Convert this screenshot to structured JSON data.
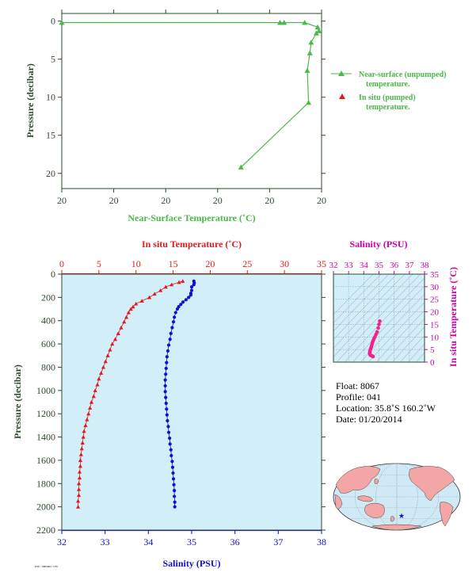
{
  "colors": {
    "green": "#4db848",
    "axis_green": "#2e4a2e",
    "red": "#e31a1c",
    "blue": "#1010d0",
    "magenta": "#cc00aa",
    "pink": "#f0228c",
    "panel_bg": "#d2eef8",
    "ocean": "#cfe9f5",
    "land": "#f4a6a6"
  },
  "chart_data": [
    {
      "id": "near_surface",
      "type": "line",
      "xlabel": "Near-Surface Temperature (˚C)",
      "ylabel": "Pressure (decibar)",
      "xtick_labels": [
        "20",
        "20",
        "20",
        "20",
        "20",
        "20"
      ],
      "ylim": [
        22,
        -1
      ],
      "yticks": [
        0,
        5,
        10,
        15,
        20
      ],
      "series": [
        {
          "name": "Near-surface (unpumped) temperature.",
          "marker": "triangle",
          "points": [
            [
              0.0,
              0.2
            ],
            [
              0.84,
              0.2
            ],
            [
              0.856,
              0.2
            ],
            [
              0.935,
              0.2
            ],
            [
              0.985,
              0.8
            ],
            [
              0.99,
              1.3
            ],
            [
              0.98,
              1.6
            ],
            [
              0.96,
              2.8
            ],
            [
              0.955,
              4.2
            ],
            [
              0.945,
              6.5
            ],
            [
              0.95,
              10.7
            ],
            [
              0.69,
              19.2
            ]
          ]
        },
        {
          "name": "In situ (pumped) temperature.",
          "marker": "triangle",
          "points": []
        }
      ]
    },
    {
      "id": "profile",
      "type": "scatter",
      "top_axis_label": "In situ Temperature (˚C)",
      "bottom_axis_label": "Salinity (PSU)",
      "ylabel": "Pressure (decibar)",
      "temperature_range": [
        0,
        35
      ],
      "salinity_range": [
        32,
        38
      ],
      "ylim": [
        2200,
        0
      ],
      "temperature_ticks": [
        0,
        5,
        10,
        15,
        20,
        25,
        30,
        35
      ],
      "salinity_ticks": [
        32,
        33,
        34,
        35,
        36,
        37,
        38
      ],
      "pressure_ticks": [
        0,
        200,
        400,
        600,
        800,
        1000,
        1200,
        1400,
        1600,
        1800,
        2000,
        2200
      ],
      "series": [
        {
          "name": "temperature",
          "points": [
            [
              16.3,
              60
            ],
            [
              15.8,
              70
            ],
            [
              14.8,
              90
            ],
            [
              14.0,
              110
            ],
            [
              13.3,
              140
            ],
            [
              12.5,
              170
            ],
            [
              11.8,
              200
            ],
            [
              10.8,
              230
            ],
            [
              10.0,
              255
            ],
            [
              9.6,
              280
            ],
            [
              9.3,
              300
            ],
            [
              9.0,
              330
            ],
            [
              8.7,
              370
            ],
            [
              8.4,
              410
            ],
            [
              8.0,
              460
            ],
            [
              7.6,
              510
            ],
            [
              7.2,
              560
            ],
            [
              6.8,
              600
            ],
            [
              6.5,
              650
            ],
            [
              6.2,
              700
            ],
            [
              5.9,
              750
            ],
            [
              5.6,
              800
            ],
            [
              5.3,
              850
            ],
            [
              5.0,
              900
            ],
            [
              4.8,
              950
            ],
            [
              4.5,
              1000
            ],
            [
              4.3,
              1050
            ],
            [
              4.0,
              1100
            ],
            [
              3.8,
              1150
            ],
            [
              3.6,
              1200
            ],
            [
              3.4,
              1250
            ],
            [
              3.2,
              1300
            ],
            [
              3.0,
              1350
            ],
            [
              2.9,
              1400
            ],
            [
              2.8,
              1450
            ],
            [
              2.7,
              1500
            ],
            [
              2.6,
              1550
            ],
            [
              2.5,
              1600
            ],
            [
              2.5,
              1650
            ],
            [
              2.4,
              1700
            ],
            [
              2.4,
              1750
            ],
            [
              2.3,
              1800
            ],
            [
              2.3,
              1850
            ],
            [
              2.3,
              1900
            ],
            [
              2.2,
              1950
            ],
            [
              2.2,
              2000
            ]
          ]
        },
        {
          "name": "salinity",
          "points": [
            [
              35.05,
              60
            ],
            [
              35.06,
              75
            ],
            [
              35.05,
              90
            ],
            [
              35.0,
              110
            ],
            [
              35.0,
              140
            ],
            [
              34.98,
              165
            ],
            [
              34.98,
              180
            ],
            [
              34.93,
              200
            ],
            [
              34.87,
              220
            ],
            [
              34.8,
              240
            ],
            [
              34.75,
              260
            ],
            [
              34.7,
              280
            ],
            [
              34.67,
              300
            ],
            [
              34.63,
              330
            ],
            [
              34.6,
              370
            ],
            [
              34.58,
              410
            ],
            [
              34.55,
              460
            ],
            [
              34.52,
              510
            ],
            [
              34.5,
              560
            ],
            [
              34.47,
              610
            ],
            [
              34.45,
              660
            ],
            [
              34.43,
              710
            ],
            [
              34.42,
              760
            ],
            [
              34.41,
              810
            ],
            [
              34.4,
              860
            ],
            [
              34.39,
              910
            ],
            [
              34.39,
              960
            ],
            [
              34.39,
              1010
            ],
            [
              34.4,
              1060
            ],
            [
              34.41,
              1110
            ],
            [
              34.42,
              1160
            ],
            [
              34.43,
              1210
            ],
            [
              34.44,
              1260
            ],
            [
              34.46,
              1310
            ],
            [
              34.47,
              1360
            ],
            [
              34.49,
              1410
            ],
            [
              34.5,
              1460
            ],
            [
              34.52,
              1510
            ],
            [
              34.53,
              1560
            ],
            [
              34.55,
              1610
            ],
            [
              34.56,
              1660
            ],
            [
              34.57,
              1710
            ],
            [
              34.58,
              1760
            ],
            [
              34.59,
              1810
            ],
            [
              34.6,
              1860
            ],
            [
              34.6,
              1910
            ],
            [
              34.61,
              1960
            ],
            [
              34.61,
              2000
            ]
          ]
        }
      ]
    },
    {
      "id": "ts_inset",
      "type": "scatter",
      "top_axis_label": "Salinity (PSU)",
      "right_axis_label": "In situ Temperature (˚C)",
      "salinity_range": [
        32,
        38
      ],
      "temperature_range": [
        0,
        35
      ],
      "salinity_ticks": [
        32,
        33,
        34,
        35,
        36,
        37,
        38
      ],
      "temperature_ticks": [
        0,
        5,
        10,
        15,
        20,
        25,
        30,
        35
      ],
      "points": [
        [
          35.05,
          16.3
        ],
        [
          35.0,
          15.0
        ],
        [
          34.95,
          13.6
        ],
        [
          34.87,
          12.0
        ],
        [
          34.8,
          11.0
        ],
        [
          34.73,
          10.0
        ],
        [
          34.67,
          9.3
        ],
        [
          34.62,
          8.6
        ],
        [
          34.58,
          8.0
        ],
        [
          34.55,
          7.3
        ],
        [
          34.52,
          6.6
        ],
        [
          34.49,
          6.0
        ],
        [
          34.46,
          5.5
        ],
        [
          34.43,
          5.0
        ],
        [
          34.41,
          4.5
        ],
        [
          34.4,
          4.1
        ],
        [
          34.39,
          3.7
        ],
        [
          34.39,
          3.3
        ],
        [
          34.41,
          3.0
        ],
        [
          34.44,
          2.8
        ],
        [
          34.48,
          2.6
        ],
        [
          34.52,
          2.5
        ],
        [
          34.56,
          2.4
        ],
        [
          34.6,
          2.3
        ],
        [
          34.61,
          2.2
        ]
      ]
    }
  ],
  "float_info": {
    "float": "Float:  8067",
    "profile": "Profile:  041",
    "location": "Location:  35.8˚S  160.2˚W",
    "date": "Date:  01/20/2014"
  },
  "map": {
    "marker_icon": "star-icon",
    "marker_lon": -160.2,
    "marker_lat": -35.8
  },
  "footer_text": "PSU / MBARI / UW"
}
